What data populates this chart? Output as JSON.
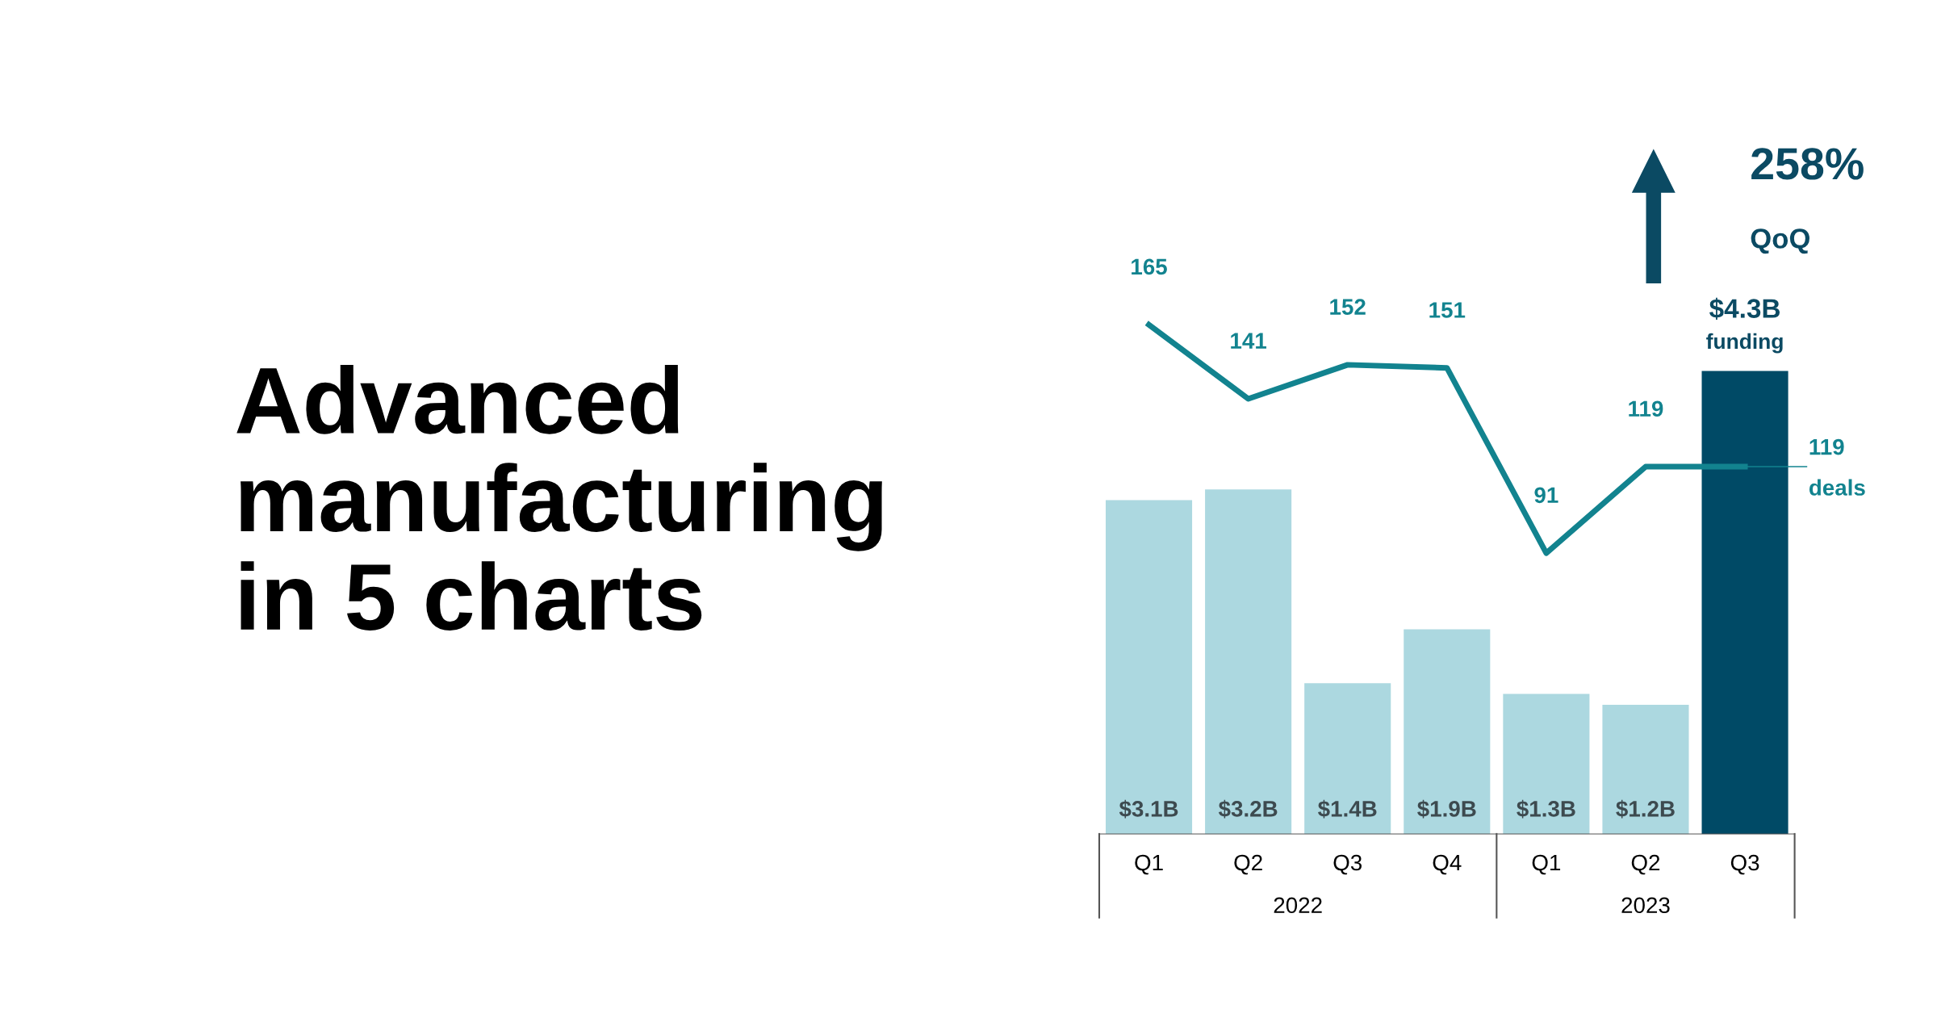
{
  "chart_data": {
    "type": "bar",
    "title": "Advanced\nmanufacturing\nin 5 charts",
    "categories": [
      "Q1",
      "Q2",
      "Q3",
      "Q4",
      "Q1",
      "Q2",
      "Q3"
    ],
    "series": [
      {
        "name": "funding",
        "color": "#acd8e0",
        "colors": [
          "#acd8e0",
          "#acd8e0",
          "#acd8e0",
          "#acd8e0",
          "#acd8e0",
          "#acd8e0",
          "#004a66"
        ],
        "values": [
          3.1,
          3.2,
          1.4,
          1.9,
          1.3,
          1.2,
          4.3
        ],
        "value_labels": [
          "$3.1B",
          "$3.2B",
          "$1.4B",
          "$1.9B",
          "$1.3B",
          "$1.2B",
          "$4.3B"
        ]
      },
      {
        "name": "deals",
        "type": "line",
        "axis": "y2",
        "color": "#12838f",
        "values": [
          165,
          141,
          152,
          151,
          91,
          119,
          119
        ],
        "value_labels": [
          "165",
          "141",
          "152",
          "151",
          "91",
          "119",
          "119"
        ]
      }
    ],
    "annotations": [
      "258%",
      "QoQ",
      "2022",
      "2023"
    ],
    "marker": "none",
    "line_style": "solid",
    "grid": false
  }
}
